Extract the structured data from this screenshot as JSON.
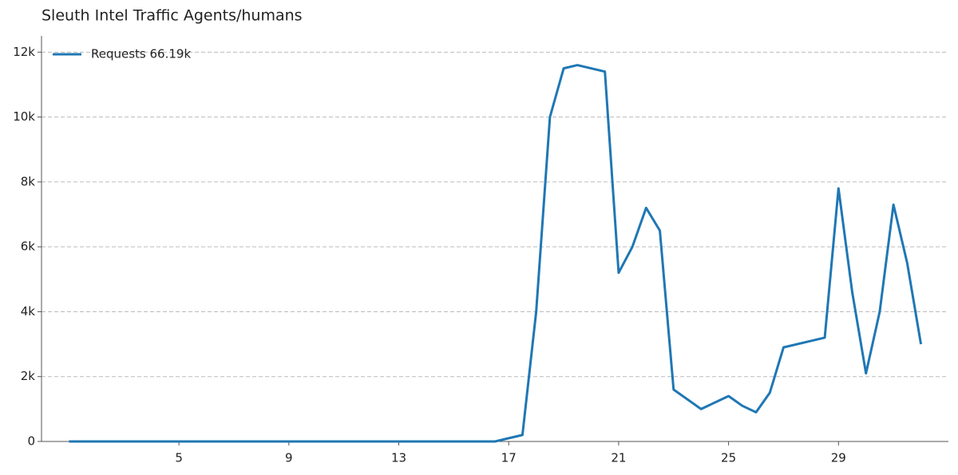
{
  "chart_data": {
    "type": "line",
    "title": "Sleuth Intel Traffic Agents/humans",
    "x": [
      1,
      16.5,
      17.5,
      18,
      18.5,
      19,
      19.5,
      20.5,
      21,
      21.5,
      22,
      22.5,
      23,
      24,
      25,
      25.5,
      26,
      26.5,
      27,
      28.5,
      29,
      29.5,
      30,
      30.5,
      31,
      31.5,
      32
    ],
    "series": [
      {
        "name": "Requests 66.19k",
        "color": "#1f77b4",
        "values": [
          0,
          0,
          200,
          4000,
          10000,
          11500,
          11600,
          11400,
          5200,
          6000,
          7200,
          6500,
          1600,
          1000,
          1400,
          1100,
          900,
          1500,
          2900,
          3200,
          7800,
          4600,
          2100,
          4000,
          7300,
          5500,
          3000
        ]
      }
    ],
    "xlim": [
      0,
      33
    ],
    "xticks": [
      5,
      9,
      13,
      17,
      21,
      25,
      29
    ],
    "ylim": [
      0,
      12500
    ],
    "yticks": [
      0,
      {
        "value": 2000,
        "label": "2k"
      },
      {
        "value": 4000,
        "label": "4k"
      },
      {
        "value": 6000,
        "label": "6k"
      },
      {
        "value": 8000,
        "label": "8k"
      },
      {
        "value": 10000,
        "label": "10k"
      },
      {
        "value": 12000,
        "label": "12k"
      }
    ],
    "grid": true,
    "legend": "upper left"
  }
}
